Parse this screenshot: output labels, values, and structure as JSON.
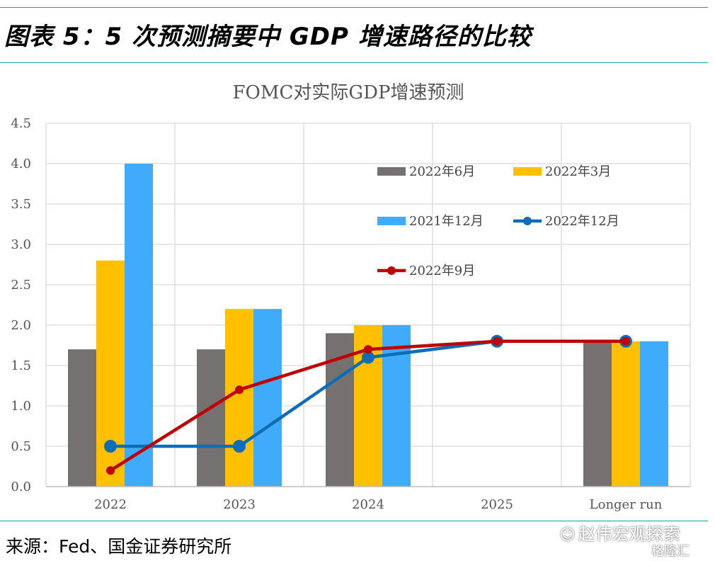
{
  "figure_title": "图表 5：5 次预测摘要中 GDP 增速路径的比较",
  "source": "来源：Fed、国金证券研究所",
  "watermark": "赵伟宏观探索",
  "watermark_sub": "格隆汇",
  "colors": {
    "rule": "#19a0b0",
    "jun2022": "#767171",
    "mar2022": "#ffc000",
    "dec2021": "#3fabfa",
    "dec2022": "#0f6db5",
    "sep2022": "#c00000",
    "grid": "#d9d9d9"
  },
  "chart_data": {
    "type": "bar+line",
    "title": "FOMC对实际GDP增速预测",
    "categories": [
      "2022",
      "2023",
      "2024",
      "2025",
      "Longer run"
    ],
    "ylim": [
      0,
      4.5
    ],
    "yticks": [
      "0.0",
      "0.5",
      "1.0",
      "1.5",
      "2.0",
      "2.5",
      "3.0",
      "3.5",
      "4.0",
      "4.5"
    ],
    "grid": true,
    "legend_position": "upper-right inside plot",
    "bar_series": [
      {
        "name": "2022年6月",
        "color": "#767171",
        "values": [
          1.7,
          1.7,
          1.9,
          null,
          1.8
        ]
      },
      {
        "name": "2022年3月",
        "color": "#ffc000",
        "values": [
          2.8,
          2.2,
          2.0,
          null,
          1.8
        ]
      },
      {
        "name": "2021年12月",
        "color": "#3fabfa",
        "values": [
          4.0,
          2.2,
          2.0,
          null,
          1.8
        ]
      }
    ],
    "line_series": [
      {
        "name": "2022年12月",
        "color": "#0f6db5",
        "values": [
          0.5,
          0.5,
          1.6,
          1.8,
          1.8
        ]
      },
      {
        "name": "2022年9月",
        "color": "#c00000",
        "values": [
          0.2,
          1.2,
          1.7,
          1.8,
          1.8
        ]
      }
    ],
    "legend_order": [
      "2022年6月",
      "2022年3月",
      "2021年12月",
      "2022年12月",
      "2022年9月"
    ]
  }
}
